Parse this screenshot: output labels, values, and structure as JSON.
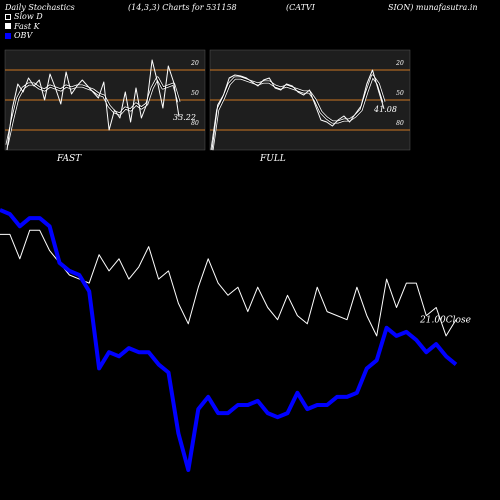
{
  "header": {
    "left": "Daily Stochastics",
    "params_title": "(14,3,3) Charts for 531158",
    "symbol_part1": "(CATVI",
    "symbol_part2": "SION) munafasutra.in"
  },
  "legend": [
    {
      "label": "Slow  D",
      "color": "#000000"
    },
    {
      "label": "Fast K",
      "color": "#ffffff"
    },
    {
      "label": "OBV",
      "color": "#0000ff"
    }
  ],
  "colors": {
    "background": "#000000",
    "panel": "#1e1e1e",
    "ref_line": "#cc7722",
    "price_line": "#ffffff",
    "obv_line": "#0000ff"
  },
  "chart_data": [
    {
      "type": "line",
      "title": "FAST",
      "ylim": [
        0,
        100
      ],
      "reference_lines": [
        20,
        50,
        80
      ],
      "ytick_labels": [
        "80",
        "50",
        "20"
      ],
      "last_value_label": "33.22",
      "series": [
        {
          "name": "Fast K",
          "values": [
            0,
            42,
            66,
            58,
            72,
            64,
            70,
            50,
            76,
            62,
            46,
            78,
            56,
            64,
            70,
            64,
            58,
            52,
            68,
            20,
            40,
            32,
            58,
            28,
            62,
            32,
            46,
            90,
            68,
            42,
            84,
            68,
            33.22
          ]
        },
        {
          "name": "Slow D",
          "values": [
            5,
            30,
            52,
            62,
            66,
            66,
            62,
            60,
            64,
            62,
            60,
            64,
            62,
            64,
            64,
            62,
            60,
            56,
            54,
            44,
            38,
            36,
            42,
            40,
            46,
            42,
            46,
            62,
            72,
            62,
            64,
            66,
            48
          ]
        }
      ]
    },
    {
      "type": "line",
      "title": "FULL",
      "ylim": [
        0,
        100
      ],
      "reference_lines": [
        20,
        50,
        80
      ],
      "ytick_labels": [
        "80",
        "50",
        "20"
      ],
      "last_value_label": "41.08",
      "series": [
        {
          "name": "Fast K",
          "values": [
            0,
            45,
            55,
            72,
            75,
            74,
            72,
            68,
            64,
            70,
            72,
            62,
            60,
            66,
            64,
            58,
            55,
            60,
            45,
            30,
            28,
            24,
            30,
            34,
            28,
            36,
            44,
            66,
            80,
            60,
            41.08
          ]
        },
        {
          "name": "Slow D",
          "values": [
            0,
            40,
            52,
            66,
            72,
            72,
            70,
            68,
            66,
            68,
            68,
            64,
            62,
            64,
            62,
            60,
            58,
            58,
            50,
            38,
            32,
            28,
            28,
            30,
            30,
            34,
            40,
            58,
            74,
            66,
            48
          ]
        }
      ]
    },
    {
      "type": "line",
      "title": "",
      "last_value_label": "21.00Close",
      "series": [
        {
          "name": "Close",
          "values": [
            70,
            70,
            58,
            72,
            72,
            62,
            56,
            50,
            48,
            46,
            60,
            52,
            58,
            48,
            54,
            64,
            48,
            52,
            36,
            26,
            44,
            58,
            46,
            40,
            44,
            32,
            44,
            34,
            28,
            40,
            30,
            26,
            44,
            32,
            30,
            28,
            44,
            30,
            20,
            48,
            34,
            46,
            46,
            30,
            34,
            20,
            28
          ]
        },
        {
          "name": "OBV",
          "values": [
            82,
            80,
            74,
            78,
            78,
            74,
            56,
            52,
            50,
            42,
            4,
            12,
            10,
            14,
            12,
            12,
            6,
            2,
            -28,
            -46,
            -16,
            -10,
            -18,
            -18,
            -14,
            -14,
            -12,
            -18,
            -20,
            -18,
            -8,
            -16,
            -14,
            -14,
            -10,
            -10,
            -8,
            4,
            8,
            24,
            20,
            22,
            18,
            12,
            16,
            10,
            6
          ]
        }
      ]
    }
  ]
}
